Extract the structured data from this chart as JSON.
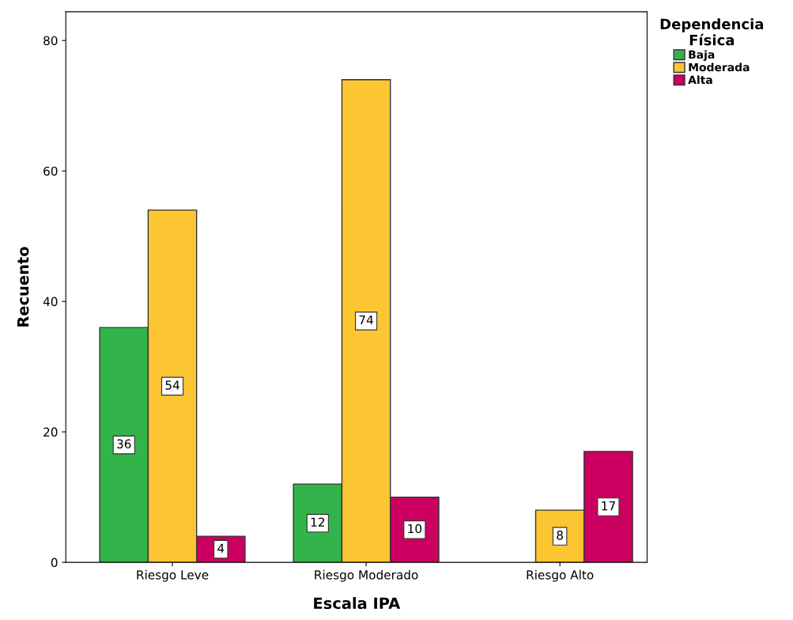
{
  "chart_data": {
    "type": "bar",
    "xlabel": "Escala IPA",
    "ylabel": "Recuento",
    "legend_title": "Dependencia\nFísica",
    "categories": [
      "Riesgo Leve",
      "Riesgo Moderado",
      "Riesgo Alto"
    ],
    "series": [
      {
        "name": "Baja",
        "color": "#33b44a",
        "values": [
          36,
          12,
          null
        ]
      },
      {
        "name": "Moderada",
        "color": "#fcc632",
        "values": [
          54,
          74,
          8
        ]
      },
      {
        "name": "Alta",
        "color": "#cc0060",
        "values": [
          4,
          10,
          17
        ]
      }
    ],
    "ylim": [
      0,
      84.4
    ],
    "yticks": [
      0,
      20,
      40,
      60,
      80
    ],
    "data_labels": true,
    "legend": "top right",
    "grid": false
  }
}
